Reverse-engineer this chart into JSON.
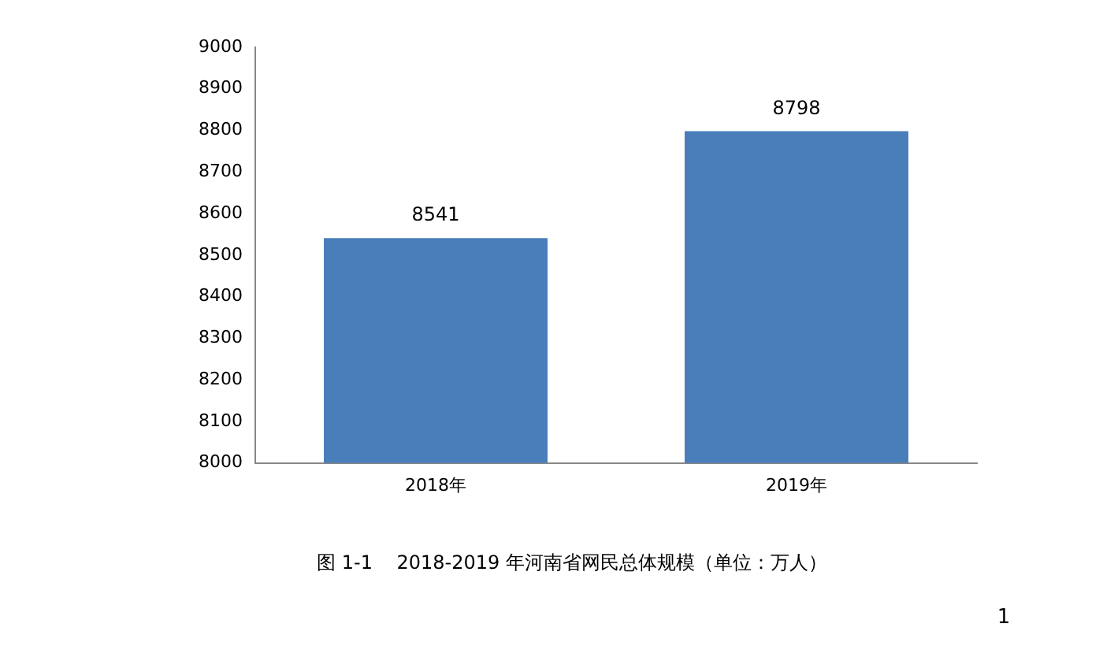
{
  "chart_data": {
    "type": "bar",
    "categories": [
      "2018年",
      "2019年"
    ],
    "values": [
      8541,
      8798
    ],
    "color": "#4a7ebb",
    "ylim": [
      8000,
      9000
    ],
    "yticks": [
      8000,
      8100,
      8200,
      8300,
      8400,
      8500,
      8600,
      8700,
      8800,
      8900,
      9000
    ],
    "grid": false,
    "legend": false,
    "data_labels": true,
    "annotations": [
      "图 1-1    2018-2019 年河南省网民总体规模（单位：万人）",
      "1"
    ]
  }
}
